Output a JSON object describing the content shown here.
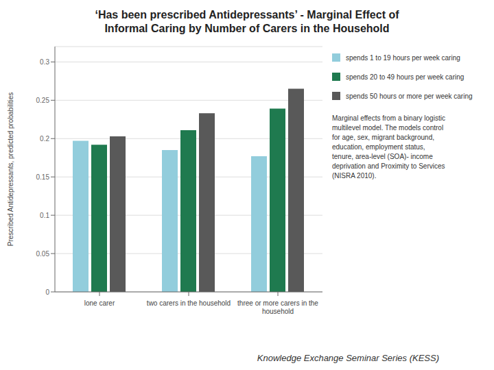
{
  "chart_data": {
    "type": "bar",
    "title": "‘Has been prescribed Antidepressants’ - Marginal Effect of\nInformal Caring by Number of Carers in the Household",
    "categories": [
      "lone carer",
      "two carers in the household",
      "three or more carers in the\nhousehold"
    ],
    "series": [
      {
        "name": "spends 1 to 19 hours per week caring",
        "color": "#92CDDC",
        "values": [
          0.197,
          0.185,
          0.177
        ]
      },
      {
        "name": "spends 20 to 49 hours per week caring",
        "color": "#1F7A4F",
        "values": [
          0.192,
          0.211,
          0.239
        ]
      },
      {
        "name": "spends 50 hours or more per week caring",
        "color": "#595959",
        "values": [
          0.203,
          0.233,
          0.265
        ]
      }
    ],
    "y_label": "Prescribed Antidepressants, predicted probabilities",
    "ylim": [
      0,
      0.32
    ],
    "yticks": [
      0,
      0.05,
      0.1,
      0.15,
      0.2,
      0.25,
      0.3
    ],
    "grid": true,
    "legend": "right",
    "annotations": [
      "Marginal effects from a binary logistic\nmultilevel model. The models control\nfor age, sex, migrant background,\neducation, employment status,\ntenure, area-level (SOA)- income\ndeprivation and Proximity to Services\n(NISRA 2010).",
      "Knowledge Exchange Seminar Series (KESS)"
    ]
  }
}
